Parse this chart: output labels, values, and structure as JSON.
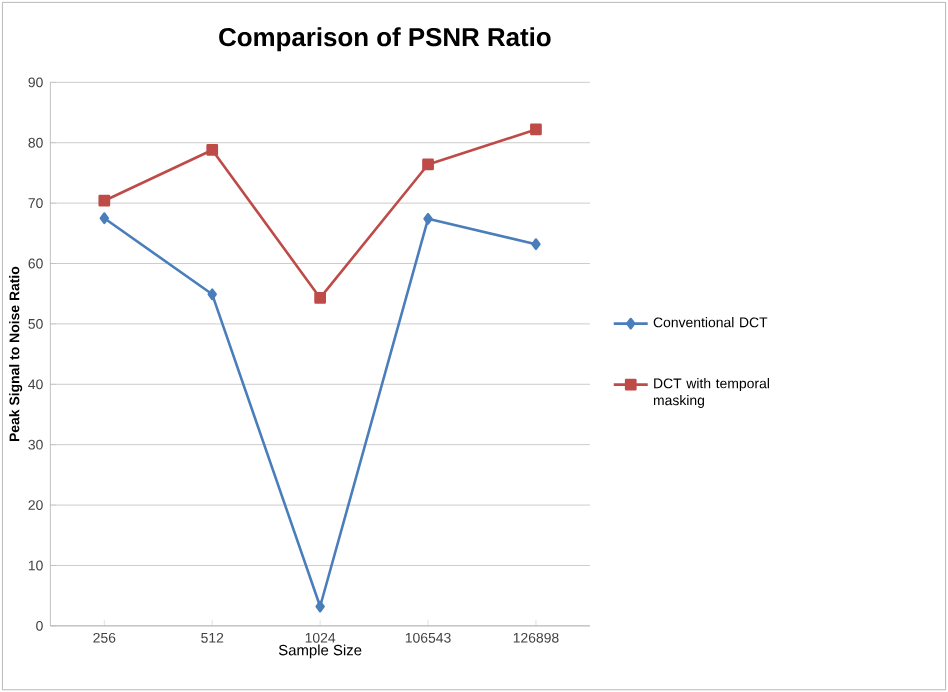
{
  "chart_data": {
    "type": "line",
    "title": "Comparison of PSNR Ratio",
    "xlabel": "Sample Size",
    "ylabel": "Peak Signal to Noise Ratio",
    "categories": [
      "256",
      "512",
      "1024",
      "106543",
      "126898"
    ],
    "series": [
      {
        "name": "Conventional DCT",
        "color": "#4a7ebb",
        "marker": "diamond",
        "values": [
          67.5,
          54.9,
          3.2,
          67.4,
          63.2
        ]
      },
      {
        "name": "DCT with temporal masking",
        "color": "#be4b48",
        "marker": "square",
        "values": [
          70.4,
          78.8,
          54.3,
          76.4,
          82.2
        ]
      }
    ],
    "ylim": [
      0,
      90
    ],
    "yticks": [
      0,
      10,
      20,
      30,
      40,
      50,
      60,
      70,
      80,
      90
    ],
    "grid": "y",
    "legend": "right"
  }
}
